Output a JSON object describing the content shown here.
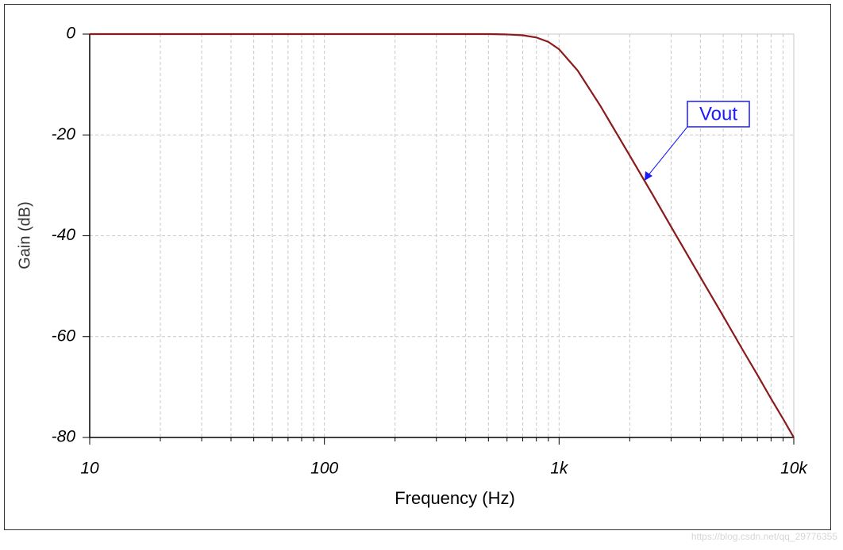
{
  "chart_data": {
    "type": "line",
    "xlabel": "Frequency (Hz)",
    "ylabel": "Gain (dB)",
    "xscale": "log",
    "x": [
      10,
      100,
      200,
      300,
      400,
      500,
      600,
      700,
      800,
      900,
      1000,
      1200,
      1500,
      2000,
      2500,
      3000,
      4000,
      5000,
      6000,
      7000,
      8000,
      9000,
      10000
    ],
    "series": [
      {
        "name": "Vout",
        "color": "#8b1a1a",
        "values": [
          0,
          0,
          0,
          0,
          0,
          0,
          -0.07,
          -0.24,
          -0.67,
          -1.55,
          -3.01,
          -7.24,
          -14.25,
          -24.1,
          -31.8,
          -38.2,
          -48.2,
          -55.9,
          -62.3,
          -67.6,
          -72.3,
          -76.3,
          -80
        ]
      }
    ],
    "xlim": [
      10,
      10000
    ],
    "ylim": [
      -80,
      0
    ],
    "xticks": [
      10,
      100,
      {
        "value": 1000,
        "label": "1k"
      },
      {
        "value": 10000,
        "label": "10k"
      }
    ],
    "xminorticks": [
      20,
      30,
      40,
      50,
      60,
      70,
      80,
      90,
      200,
      300,
      400,
      500,
      600,
      700,
      800,
      900,
      2000,
      3000,
      4000,
      5000,
      6000,
      7000,
      8000,
      9000
    ],
    "yticks": [
      0,
      -20,
      -40,
      -60,
      -80
    ],
    "grid": true,
    "watermark": "https://blog.csdn.net/qq_29776355"
  }
}
